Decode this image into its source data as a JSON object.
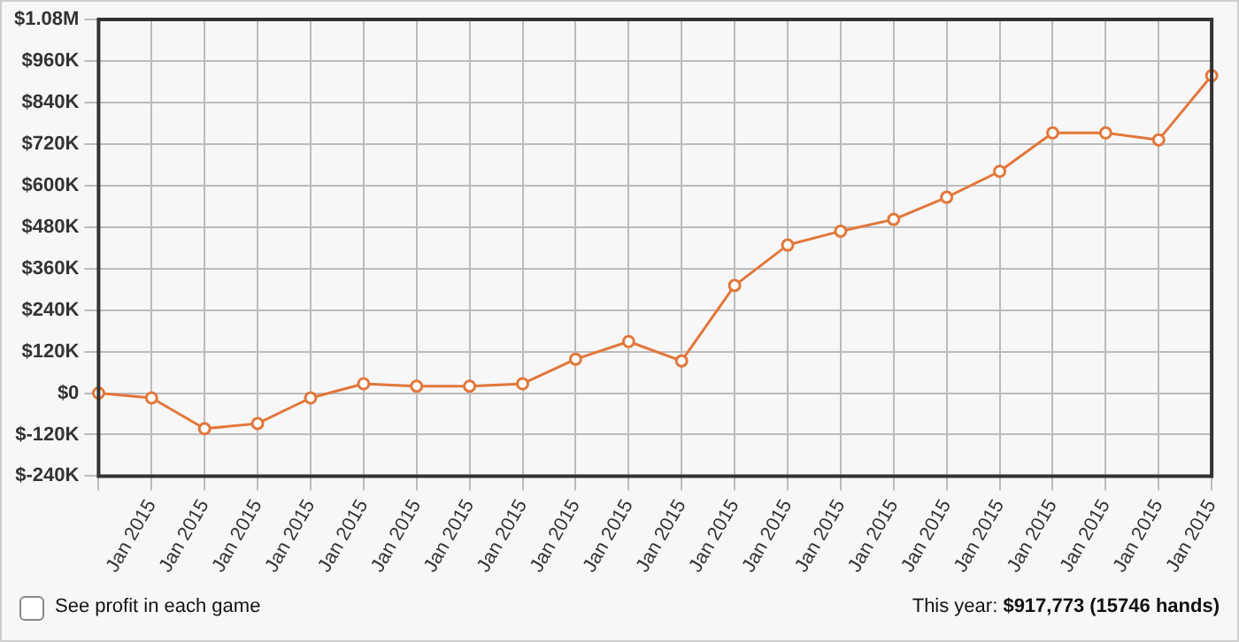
{
  "chart_data": {
    "type": "line",
    "categories": [
      null,
      "Jan 2015",
      "Jan 2015",
      "Jan 2015",
      "Jan 2015",
      "Jan 2015",
      "Jan 2015",
      "Jan 2015",
      "Jan 2015",
      "Jan 2015",
      "Jan 2015",
      "Jan 2015",
      "Jan 2015",
      "Jan 2015",
      "Jan 2015",
      "Jan 2015",
      "Jan 2015",
      "Jan 2015",
      "Jan 2015",
      "Jan 2015",
      "Jan 2015",
      "Jan 2015"
    ],
    "series": [
      {
        "color": "#e2773a",
        "values": [
          0,
          -14000,
          -103000,
          -88000,
          -14000,
          27000,
          20000,
          20000,
          27000,
          98000,
          149000,
          93000,
          311000,
          428000,
          468000,
          502000,
          566000,
          641000,
          752000,
          752000,
          732000,
          917773
        ]
      }
    ],
    "ylim": [
      -240000,
      1080000
    ],
    "yticks": [
      {
        "value": -240000,
        "label": "$-240K"
      },
      {
        "value": -120000,
        "label": "$-120K"
      },
      {
        "value": 0,
        "label": "$0"
      },
      {
        "value": 120000,
        "label": "$120K"
      },
      {
        "value": 240000,
        "label": "$240K"
      },
      {
        "value": 360000,
        "label": "$360K"
      },
      {
        "value": 480000,
        "label": "$480K"
      },
      {
        "value": 600000,
        "label": "$600K"
      },
      {
        "value": 720000,
        "label": "$720K"
      },
      {
        "value": 840000,
        "label": "$840K"
      },
      {
        "value": 960000,
        "label": "$960K"
      },
      {
        "value": 1080000,
        "label": "$1.08M"
      }
    ],
    "grid": true,
    "marker": "circle",
    "line_style": "solid",
    "annotations": [
      "See profit in each game",
      "This year: $917,773 (15746 hands)"
    ]
  }
}
